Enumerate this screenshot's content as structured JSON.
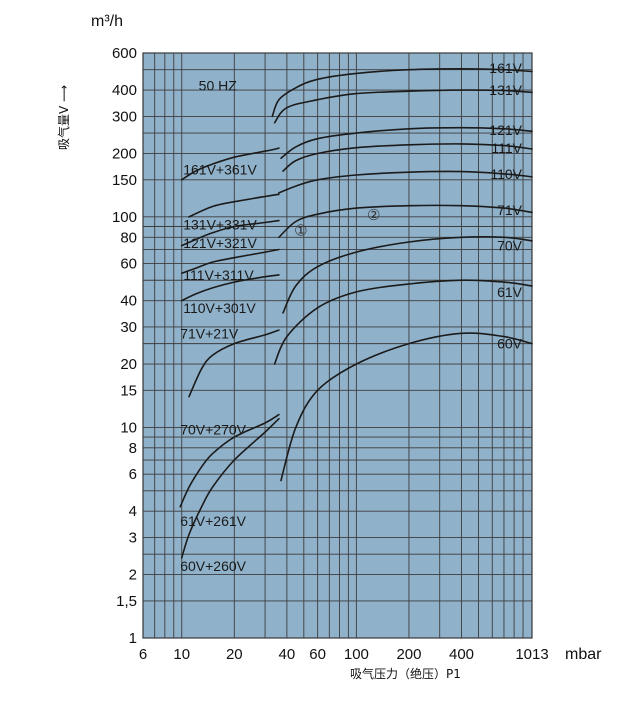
{
  "chart_data": {
    "type": "line",
    "xscale": "log",
    "yscale": "log",
    "xlim": [
      6,
      1013
    ],
    "ylim": [
      1,
      600
    ],
    "grid": true,
    "background": "#8fb1c9",
    "unit_y": "m³/h",
    "unit_x": "mbar",
    "ylabel": "吸气量V ⟶",
    "xlabel": "吸气压力（绝压）P1",
    "xticks": [
      6,
      10,
      20,
      40,
      60,
      100,
      200,
      400,
      1013
    ],
    "xtick_labels": [
      "6",
      "10",
      "20",
      "40",
      "60",
      "100",
      "200",
      "400",
      "1013"
    ],
    "yticks": [
      1,
      1.5,
      2,
      3,
      4,
      6,
      8,
      10,
      15,
      20,
      30,
      40,
      60,
      80,
      100,
      150,
      200,
      300,
      400,
      600
    ],
    "ytick_labels": [
      "1",
      "1,5",
      "2",
      "3",
      "4",
      "6",
      "8",
      "10",
      "15",
      "20",
      "30",
      "40",
      "60",
      "80",
      "100",
      "150",
      "200",
      "300",
      "400",
      "600"
    ],
    "annotations": [
      "50 HZ",
      "①",
      "②"
    ],
    "series": [
      {
        "name": "161V",
        "x": [
          33,
          36,
          45,
          60,
          100,
          200,
          400,
          700,
          1013
        ],
        "y": [
          300,
          360,
          410,
          450,
          480,
          500,
          505,
          500,
          490
        ]
      },
      {
        "name": "131V",
        "x": [
          34,
          40,
          60,
          100,
          200,
          400,
          700,
          1013
        ],
        "y": [
          280,
          330,
          360,
          385,
          395,
          400,
          398,
          390
        ]
      },
      {
        "name": "121V",
        "x": [
          37,
          45,
          60,
          100,
          200,
          400,
          700,
          1013
        ],
        "y": [
          190,
          215,
          235,
          250,
          262,
          265,
          262,
          255
        ]
      },
      {
        "name": "111V",
        "x": [
          38,
          45,
          60,
          100,
          200,
          400,
          700,
          1013
        ],
        "y": [
          165,
          185,
          200,
          213,
          220,
          222,
          218,
          210
        ]
      },
      {
        "name": "110V",
        "x": [
          36,
          45,
          60,
          100,
          200,
          400,
          700,
          1013
        ],
        "y": [
          130,
          140,
          150,
          158,
          163,
          164,
          160,
          155
        ]
      },
      {
        "name": "71V",
        "x": [
          36,
          45,
          60,
          100,
          200,
          400,
          700,
          1013
        ],
        "y": [
          80,
          95,
          103,
          110,
          113,
          113,
          110,
          105
        ]
      },
      {
        "name": "70V",
        "x": [
          38,
          45,
          60,
          100,
          200,
          400,
          700,
          1013
        ],
        "y": [
          35,
          47,
          58,
          68,
          76,
          80,
          80,
          77
        ]
      },
      {
        "name": "61V",
        "x": [
          34,
          40,
          60,
          100,
          200,
          400,
          700,
          1013
        ],
        "y": [
          20,
          27,
          37,
          44,
          48,
          50,
          49,
          47
        ]
      },
      {
        "name": "60V",
        "x": [
          37,
          45,
          60,
          100,
          200,
          400,
          700,
          1013
        ],
        "y": [
          5.6,
          10,
          15,
          20,
          25,
          28,
          27,
          25
        ]
      },
      {
        "name": "161V+361V",
        "x": [
          10,
          12,
          15,
          20,
          30,
          36
        ],
        "y": [
          150,
          165,
          178,
          192,
          205,
          212
        ]
      },
      {
        "name": "131V+331V",
        "x": [
          11,
          15,
          20,
          30,
          36
        ],
        "y": [
          100,
          112,
          118,
          125,
          128
        ]
      },
      {
        "name": "121V+321V",
        "x": [
          10,
          12,
          15,
          20,
          30,
          36
        ],
        "y": [
          73,
          78,
          84,
          90,
          94,
          96
        ]
      },
      {
        "name": "111V+311V",
        "x": [
          10,
          12,
          15,
          20,
          30,
          36
        ],
        "y": [
          54,
          57,
          61,
          64,
          68,
          70
        ]
      },
      {
        "name": "110V+301V",
        "x": [
          10,
          12,
          15,
          20,
          30,
          36
        ],
        "y": [
          40,
          43,
          46,
          49,
          52,
          53
        ]
      },
      {
        "name": "71V+21V",
        "x": [
          11,
          13,
          15,
          20,
          30,
          36
        ],
        "y": [
          14,
          19,
          22,
          25,
          27.5,
          29
        ]
      },
      {
        "name": "70V+270V",
        "x": [
          9.8,
          11,
          13,
          15,
          20,
          30,
          36
        ],
        "y": [
          4.2,
          5.2,
          6.5,
          7.5,
          9,
          10.5,
          11.5
        ]
      },
      {
        "name": "61V+261V",
        "x": [
          10,
          11,
          13,
          15,
          20,
          30,
          36
        ],
        "y": [
          2.4,
          3.1,
          4.2,
          5.2,
          7,
          9.5,
          11
        ]
      },
      {
        "name": "60V+260V",
        "x": [],
        "y": []
      }
    ],
    "series_labels": [
      {
        "text": "161V",
        "x": 620,
        "y": 510
      },
      {
        "text": "131V",
        "x": 620,
        "y": 400
      },
      {
        "text": "121V",
        "x": 620,
        "y": 258
      },
      {
        "text": "111V",
        "x": 620,
        "y": 212
      },
      {
        "text": "110V",
        "x": 620,
        "y": 160
      },
      {
        "text": "71V",
        "x": 640,
        "y": 108
      },
      {
        "text": "70V",
        "x": 640,
        "y": 73
      },
      {
        "text": "61V",
        "x": 640,
        "y": 44
      },
      {
        "text": "60V",
        "x": 640,
        "y": 25
      },
      {
        "text": "161V+361V",
        "x": 10.2,
        "y": 168
      },
      {
        "text": "131V+331V",
        "x": 10.2,
        "y": 92
      },
      {
        "text": "121V+321V",
        "x": 10.2,
        "y": 75
      },
      {
        "text": "111V+311V",
        "x": 10.2,
        "y": 53
      },
      {
        "text": "110V+301V",
        "x": 10.2,
        "y": 37
      },
      {
        "text": "71V+21V",
        "x": 9.8,
        "y": 28
      },
      {
        "text": "70V+270V",
        "x": 9.8,
        "y": 9.8
      },
      {
        "text": "61V+261V",
        "x": 9.8,
        "y": 3.6
      },
      {
        "text": "60V+260V",
        "x": 9.8,
        "y": 2.2
      }
    ],
    "annotation_positions": [
      {
        "text": "50 HZ",
        "x": 12.5,
        "y": 420
      },
      {
        "text": "①",
        "x": 44,
        "y": 86
      },
      {
        "text": "②",
        "x": 115,
        "y": 102
      }
    ]
  }
}
